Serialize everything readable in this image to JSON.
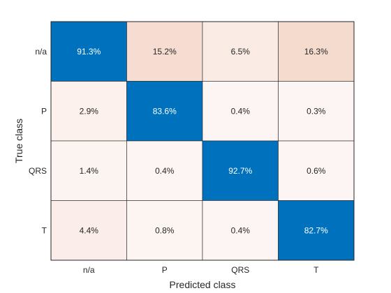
{
  "chart_data": {
    "type": "heatmap",
    "title": "",
    "xlabel": "Predicted class",
    "ylabel": "True class",
    "x_categories": [
      "n/a",
      "P",
      "QRS",
      "T"
    ],
    "y_categories": [
      "n/a",
      "P",
      "QRS",
      "T"
    ],
    "values": [
      [
        91.3,
        15.2,
        6.5,
        16.3
      ],
      [
        2.9,
        83.6,
        0.4,
        0.3
      ],
      [
        1.4,
        0.4,
        92.7,
        0.6
      ],
      [
        4.4,
        0.8,
        0.4,
        82.7
      ]
    ],
    "labels": [
      [
        "91.3%",
        "15.2%",
        "6.5%",
        "16.3%"
      ],
      [
        "2.9%",
        "83.6%",
        "0.4%",
        "0.3%"
      ],
      [
        "1.4%",
        "0.4%",
        "92.7%",
        "0.6%"
      ],
      [
        "4.4%",
        "0.8%",
        "0.4%",
        "82.7%"
      ]
    ],
    "colors": {
      "diagonal": "#0072bd",
      "diagonal_text": "#ffffff",
      "off_diagonal_low": "#fdf6f4",
      "off_diagonal_high": "#f5dace",
      "off_diagonal_text": "#262626",
      "grid": "#262626"
    }
  }
}
